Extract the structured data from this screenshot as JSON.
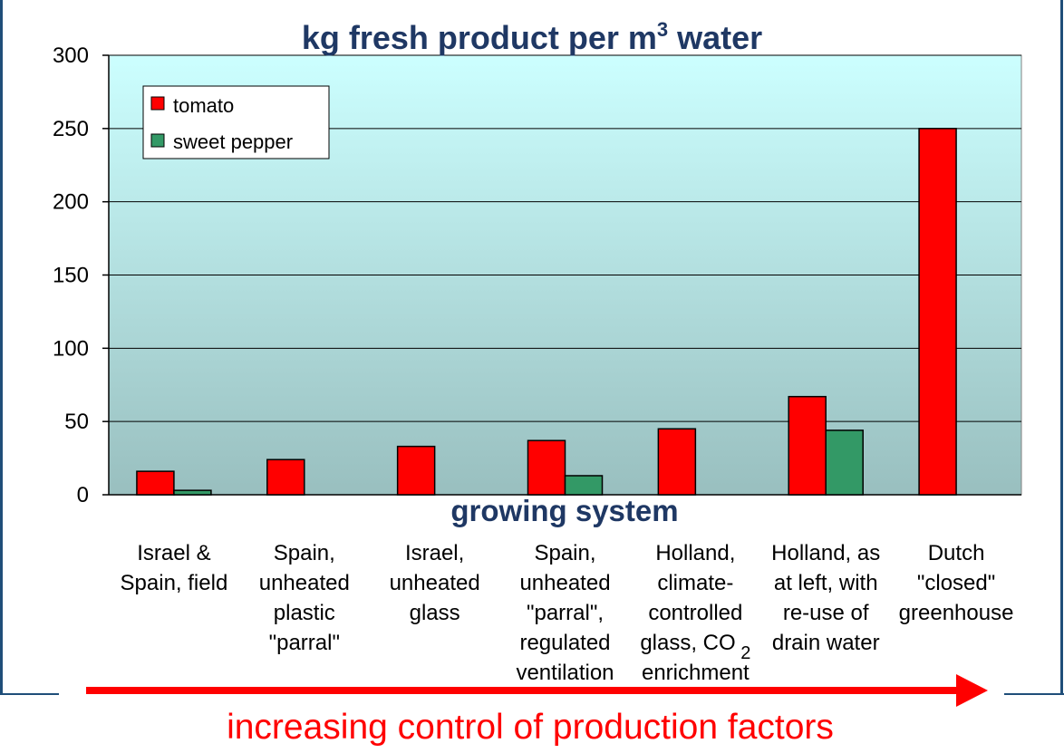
{
  "chart_data": {
    "type": "bar",
    "title": "kg fresh product per m",
    "title_superscript": "3",
    "title_suffix": " water",
    "xlabel": "growing system",
    "ylabel": "",
    "ylim": [
      0,
      300
    ],
    "yticks": [
      0,
      50,
      100,
      150,
      200,
      250,
      300
    ],
    "grid": true,
    "legend_position": "top-left",
    "categories": [
      [
        "Israel &",
        "Spain, field"
      ],
      [
        "Spain,",
        "unheated",
        "plastic",
        "\"parral\""
      ],
      [
        "Israel,",
        "unheated",
        "glass"
      ],
      [
        "Spain,",
        "unheated",
        "\"parral\",",
        "regulated",
        "ventilation"
      ],
      [
        "Holland,",
        "climate-",
        "controlled",
        "glass, CO",
        "enrichment"
      ],
      [
        "Holland, as",
        "at left, with",
        "re-use of",
        "drain water"
      ],
      [
        "Dutch",
        "\"closed\"",
        "greenhouse"
      ]
    ],
    "subscript_note": "2",
    "series": [
      {
        "name": "tomato",
        "color": "#ff0000",
        "values": [
          16,
          24,
          33,
          37,
          45,
          67,
          250
        ]
      },
      {
        "name": "sweet pepper",
        "color": "#339966",
        "values": [
          3,
          null,
          null,
          13,
          null,
          44,
          null
        ]
      }
    ]
  },
  "footer": {
    "caption": "increasing control of production factors",
    "caption_color": "#ff0000"
  }
}
